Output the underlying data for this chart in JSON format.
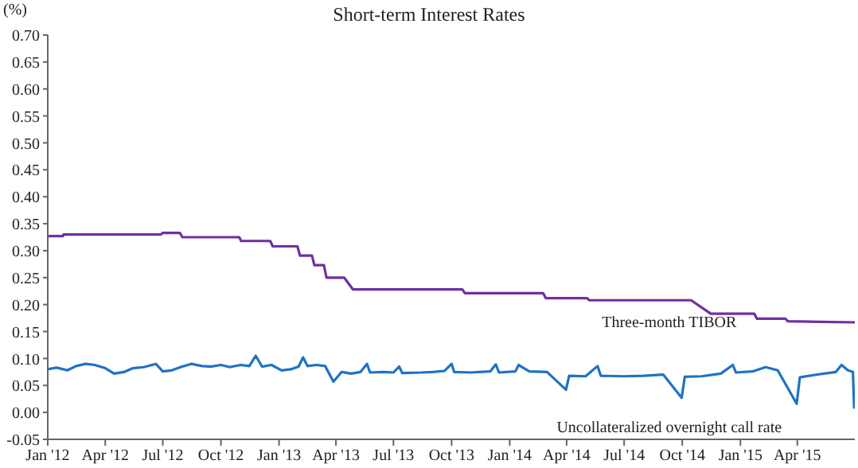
{
  "chart_data": {
    "type": "line",
    "title": "Short-term Interest Rates",
    "ylabel": "(%)",
    "xlim": [
      "2012-01-01",
      "2015-07-01"
    ],
    "xticks": [
      {
        "value": "2012-01-01",
        "label": "Jan '12"
      },
      {
        "value": "2012-04-01",
        "label": "Apr '12"
      },
      {
        "value": "2012-07-01",
        "label": "Jul '12"
      },
      {
        "value": "2012-10-01",
        "label": "Oct '12"
      },
      {
        "value": "2013-01-01",
        "label": "Jan '13"
      },
      {
        "value": "2013-04-01",
        "label": "Apr '13"
      },
      {
        "value": "2013-07-01",
        "label": "Jul '13"
      },
      {
        "value": "2013-10-01",
        "label": "Oct '13"
      },
      {
        "value": "2014-01-01",
        "label": "Jan '14"
      },
      {
        "value": "2014-04-01",
        "label": "Apr '14"
      },
      {
        "value": "2014-07-01",
        "label": "Jul '14"
      },
      {
        "value": "2014-10-01",
        "label": "Oct '14"
      },
      {
        "value": "2015-01-01",
        "label": "Jan '15"
      },
      {
        "value": "2015-04-01",
        "label": "Apr '15"
      }
    ],
    "ylim": [
      -0.05,
      0.7
    ],
    "yticks": [
      {
        "value": -0.05,
        "label": "-0.05"
      },
      {
        "value": 0,
        "label": "0.00"
      },
      {
        "value": 0.05,
        "label": "0.05"
      },
      {
        "value": 0.1,
        "label": "0.10"
      },
      {
        "value": 0.15,
        "label": "0.15"
      },
      {
        "value": 0.2,
        "label": "0.20"
      },
      {
        "value": 0.25,
        "label": "0.25"
      },
      {
        "value": 0.3,
        "label": "0.30"
      },
      {
        "value": 0.35,
        "label": "0.35"
      },
      {
        "value": 0.4,
        "label": "0.40"
      },
      {
        "value": 0.45,
        "label": "0.45"
      },
      {
        "value": 0.5,
        "label": "0.50"
      },
      {
        "value": 0.55,
        "label": "0.55"
      },
      {
        "value": 0.6,
        "label": "0.60"
      },
      {
        "value": 0.65,
        "label": "0.65"
      },
      {
        "value": 0.7,
        "label": "0.70"
      }
    ],
    "marker": "none",
    "line_style": "solid",
    "series": [
      {
        "name": "Three-month TIBOR",
        "color": "#7030a0",
        "x": [
          "2012-01-01",
          "2012-01-25",
          "2012-01-26",
          "2012-06-28",
          "2012-07-01",
          "2012-07-28",
          "2012-08-01",
          "2012-10-30",
          "2012-11-02",
          "2012-12-18",
          "2012-12-22",
          "2013-01-30",
          "2013-02-03",
          "2013-02-22",
          "2013-02-26",
          "2013-03-13",
          "2013-03-17",
          "2013-04-14",
          "2013-04-28",
          "2013-10-18",
          "2013-10-22",
          "2014-02-23",
          "2014-02-27",
          "2014-05-03",
          "2014-05-07",
          "2014-10-15",
          "2014-11-15",
          "2015-01-23",
          "2015-01-27",
          "2015-03-13",
          "2015-03-17",
          "2015-07-01"
        ],
        "values": [
          0.327,
          0.327,
          0.33,
          0.33,
          0.333,
          0.333,
          0.325,
          0.325,
          0.318,
          0.318,
          0.308,
          0.308,
          0.291,
          0.291,
          0.273,
          0.273,
          0.25,
          0.25,
          0.228,
          0.228,
          0.221,
          0.221,
          0.212,
          0.212,
          0.208,
          0.208,
          0.183,
          0.183,
          0.174,
          0.174,
          0.169,
          0.167
        ]
      },
      {
        "name": "Uncollateralized overnight call rate",
        "color": "#1f72c4",
        "x": [
          "2012-01-01",
          "2012-01-15",
          "2012-02-01",
          "2012-02-15",
          "2012-03-01",
          "2012-03-15",
          "2012-04-01",
          "2012-04-15",
          "2012-05-01",
          "2012-05-15",
          "2012-06-01",
          "2012-06-20",
          "2012-07-01",
          "2012-07-15",
          "2012-08-01",
          "2012-08-15",
          "2012-09-01",
          "2012-09-15",
          "2012-10-01",
          "2012-10-15",
          "2012-11-01",
          "2012-11-15",
          "2012-11-25",
          "2012-12-05",
          "2012-12-20",
          "2013-01-05",
          "2013-01-20",
          "2013-02-01",
          "2013-02-08",
          "2013-02-15",
          "2013-03-01",
          "2013-03-15",
          "2013-03-28",
          "2013-04-10",
          "2013-04-25",
          "2013-05-10",
          "2013-05-20",
          "2013-05-25",
          "2013-06-15",
          "2013-07-01",
          "2013-07-10",
          "2013-07-15",
          "2013-08-15",
          "2013-09-01",
          "2013-09-20",
          "2013-10-01",
          "2013-10-05",
          "2013-11-01",
          "2013-12-01",
          "2013-12-10",
          "2013-12-15",
          "2014-01-10",
          "2014-01-15",
          "2014-02-01",
          "2014-03-01",
          "2014-03-31",
          "2014-04-05",
          "2014-05-01",
          "2014-05-20",
          "2014-05-25",
          "2014-07-01",
          "2014-08-01",
          "2014-09-01",
          "2014-09-30",
          "2014-10-05",
          "2014-11-01",
          "2014-12-01",
          "2014-12-20",
          "2014-12-25",
          "2015-01-20",
          "2015-02-10",
          "2015-03-01",
          "2015-03-31",
          "2015-04-05",
          "2015-05-01",
          "2015-06-01",
          "2015-06-10",
          "2015-06-20",
          "2015-06-28",
          "2015-06-30"
        ],
        "values": [
          0.08,
          0.083,
          0.078,
          0.086,
          0.09,
          0.088,
          0.082,
          0.072,
          0.075,
          0.082,
          0.084,
          0.09,
          0.076,
          0.078,
          0.085,
          0.09,
          0.086,
          0.085,
          0.088,
          0.084,
          0.088,
          0.086,
          0.105,
          0.085,
          0.088,
          0.078,
          0.08,
          0.085,
          0.102,
          0.086,
          0.088,
          0.086,
          0.057,
          0.075,
          0.072,
          0.075,
          0.09,
          0.074,
          0.075,
          0.074,
          0.085,
          0.073,
          0.074,
          0.075,
          0.077,
          0.09,
          0.075,
          0.074,
          0.076,
          0.089,
          0.074,
          0.076,
          0.088,
          0.076,
          0.075,
          0.042,
          0.068,
          0.067,
          0.086,
          0.068,
          0.067,
          0.068,
          0.07,
          0.027,
          0.066,
          0.067,
          0.072,
          0.088,
          0.074,
          0.076,
          0.084,
          0.078,
          0.016,
          0.065,
          0.07,
          0.075,
          0.088,
          0.078,
          0.075,
          0.007
        ]
      }
    ]
  }
}
